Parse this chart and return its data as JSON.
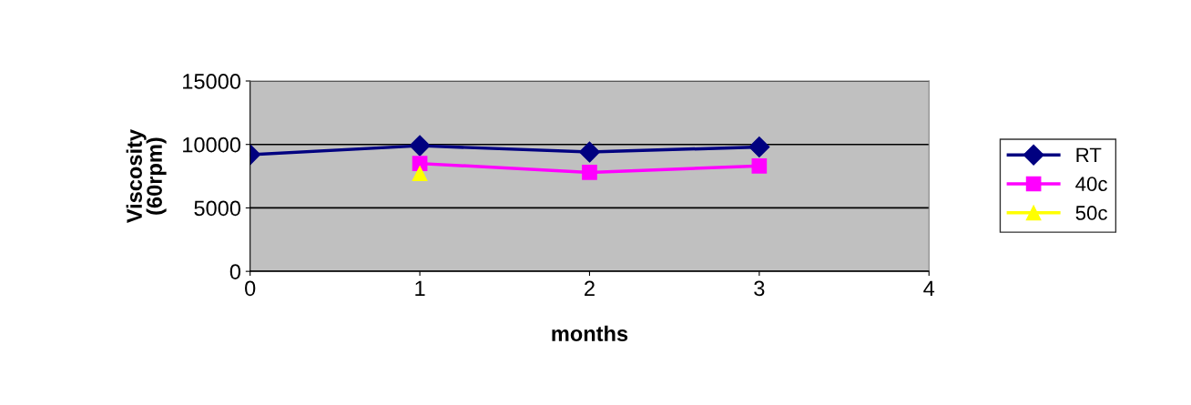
{
  "chart_data": {
    "type": "line",
    "xlabel": "months",
    "ylabel": "Viscosity\n(60rpm)",
    "x": [
      0,
      1,
      2,
      3
    ],
    "xlim": [
      0,
      4
    ],
    "xticks": [
      0,
      1,
      2,
      3,
      4
    ],
    "ylim": [
      0,
      15000
    ],
    "yticks": [
      0,
      5000,
      10000,
      15000
    ],
    "grid": "y",
    "legend": "right",
    "series": [
      {
        "name": "RT",
        "color": "#000080",
        "marker": "diamond",
        "values": [
          9200,
          9900,
          9400,
          9800
        ]
      },
      {
        "name": "40c",
        "color": "#ff00ff",
        "marker": "square",
        "x": [
          1,
          2,
          3
        ],
        "values": [
          8500,
          7800,
          8300
        ]
      },
      {
        "name": "50c",
        "color": "#ffff00",
        "marker": "triangle",
        "x": [
          1
        ],
        "values": [
          7700
        ]
      }
    ]
  }
}
